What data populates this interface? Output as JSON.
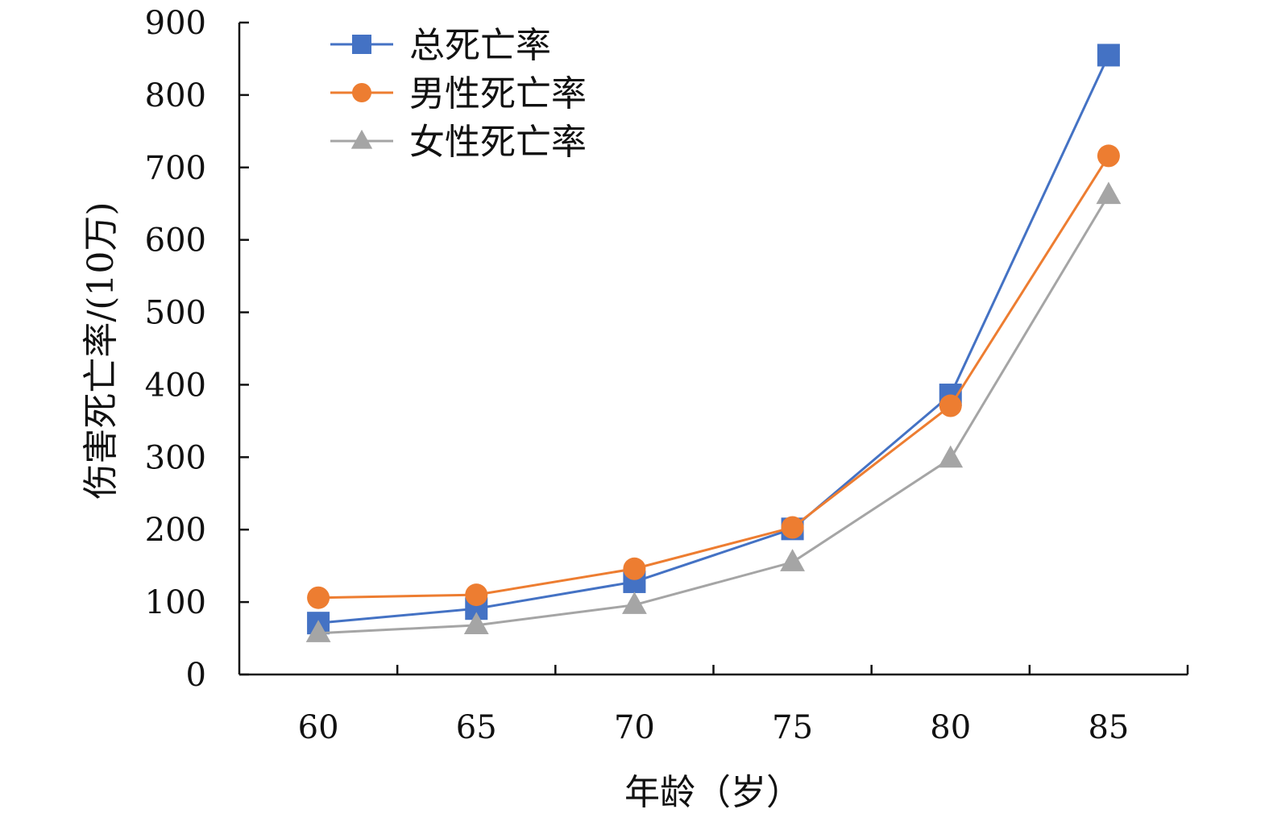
{
  "chart_data": {
    "type": "line",
    "title": "",
    "xlabel": "年龄（岁）",
    "ylabel": "伤害死亡率/(10万)",
    "x": [
      60,
      65,
      70,
      75,
      80,
      85
    ],
    "ylim": [
      0,
      900
    ],
    "yticks": [
      0,
      100,
      200,
      300,
      400,
      500,
      600,
      700,
      800,
      900
    ],
    "grid": false,
    "legend_position": "top-left",
    "series": [
      {
        "name": "总死亡率",
        "values": [
          71,
          91,
          128,
          201,
          386,
          855
        ],
        "color": "#4472C4",
        "marker": "square"
      },
      {
        "name": "男性死亡率",
        "values": [
          106,
          110,
          146,
          203,
          371,
          716
        ],
        "color": "#ED7D31",
        "marker": "circle"
      },
      {
        "name": "女性死亡率",
        "values": [
          57,
          68,
          96,
          155,
          298,
          662
        ],
        "color": "#A5A5A5",
        "marker": "triangle"
      }
    ]
  }
}
